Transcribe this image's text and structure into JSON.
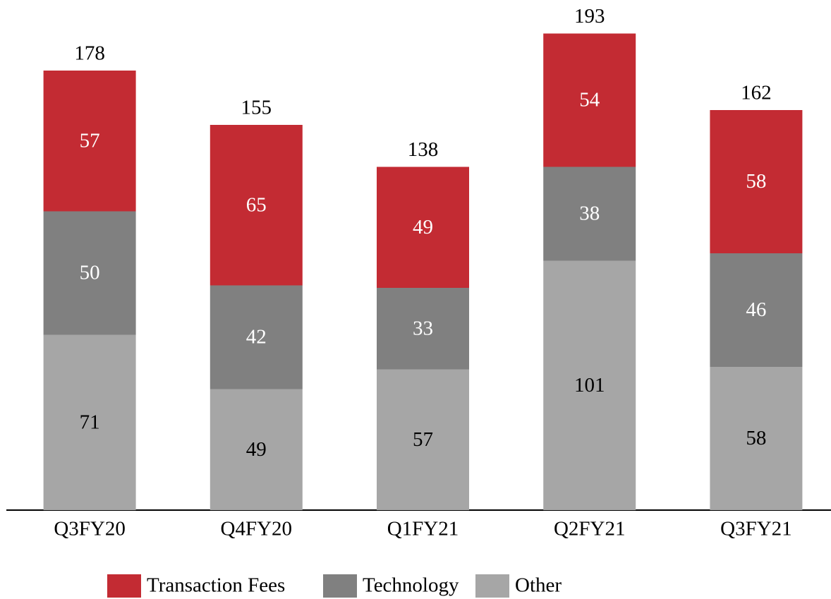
{
  "chart_data": {
    "type": "stacked_bar",
    "categories": [
      "Q3FY20",
      "Q4FY20",
      "Q1FY21",
      "Q2FY21",
      "Q3FY21"
    ],
    "series": [
      {
        "name": "Transaction Fees",
        "color": "#c32b33",
        "label_color": "#ffffff",
        "values": [
          57,
          65,
          49,
          54,
          58
        ]
      },
      {
        "name": "Technology",
        "color": "#808080",
        "label_color": "#ffffff",
        "values": [
          50,
          42,
          33,
          38,
          46
        ]
      },
      {
        "name": "Other",
        "color": "#a6a6a6",
        "label_color": "#000000",
        "values": [
          71,
          49,
          57,
          101,
          58
        ]
      }
    ],
    "totals": [
      178,
      155,
      138,
      193,
      162
    ],
    "ylim": [
      0,
      200
    ],
    "legend": "bottom"
  }
}
